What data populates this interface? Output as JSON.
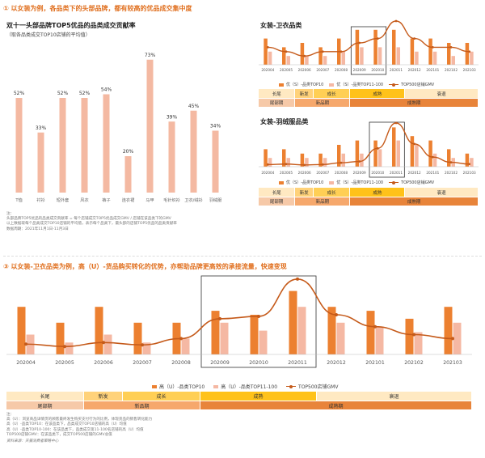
{
  "section1": {
    "title": "① 以女装为例，各品类下的头部品牌，都有较高的优品成交集中度"
  },
  "chart1": {
    "title": "双十一头部品牌TOP5优品的品类成交贡献率",
    "subtitle": "（取各品类成交TOP10店铺的平均值）",
    "notes": [
      "注：",
      "头部品牌TOP5优品的品类成交贡献率 = 每个店铺成交TOP5优品成交GMV / 店铺在该品类下的GMV",
      "以上数据取每个品类成交TOP10店铺的平均值，表示每个品类下，最头部的店铺TOP5优品的品类贡献率",
      "数据周期：2021年11月1日-11月3日"
    ]
  },
  "chart2": {
    "title": "女装-卫衣品类",
    "legend": [
      "优（S）-品类TOP10",
      "优（S）-品类TOP11-100",
      "TOP500店铺GMV"
    ],
    "stage_row1": [
      "长尾",
      "新发",
      "成长",
      "成熟",
      "衰退"
    ],
    "stage_row2": [
      "尾部期",
      "新品期",
      "成熟期"
    ]
  },
  "chart3": {
    "title": "女装-羽绒服品类",
    "legend": [
      "优（S）-品类TOP10",
      "优（S）-品类TOP11-100",
      "TOP500店铺GMV"
    ],
    "stage_row1": [
      "长尾",
      "新发",
      "成长",
      "成熟",
      "衰退"
    ],
    "stage_row2": [
      "尾部期",
      "新品期",
      "成熟期"
    ]
  },
  "section3": {
    "title": "③ 以女装-卫衣品类为例，高（U）-货品购买转化的优势，亦帮助品牌更高效的承接流量，快速变现"
  },
  "chart4": {
    "legend": [
      "高（U）-品类TOP10",
      "高（U）-品类TOP11-100",
      "TOP500店铺GMV"
    ],
    "stage_row1": [
      "长尾",
      "新发",
      "成长",
      "成熟",
      "衰退"
    ],
    "stage_row2": [
      "尾部期",
      "新品期",
      "成熟期"
    ],
    "notes": [
      "注：",
      "高（U）：浏览商品详情页的顾客最终发生购买支付行为的比例，体现货品的销售转化能力",
      "高（U）-品类TOP10：在该品类下，品类成交TOP10店铺的高（U）均值",
      "高（U）-品类TOP10-100：在该品类下，品类成交第11-100名店铺的高（U）均值",
      "TOP500店铺GMV：在该品类下，成交TOP500店铺的GMV总值"
    ],
    "source": "资料来源：天猫消费者策略中心"
  },
  "colors": {
    "accent": "#e07020",
    "bar_dark": "#ec8030",
    "bar_light": "#f5b8a3",
    "line": "#c55a1a",
    "peach_bar": "#f4b9a2"
  },
  "chart_data": [
    {
      "type": "bar",
      "categories": [
        "T恤",
        "衬衫",
        "短外套",
        "风衣",
        "裤子",
        "连衣裙",
        "马甲",
        "毛针织衫",
        "卫衣/绒衫",
        "羽绒服"
      ],
      "values": [
        52,
        33,
        52,
        52,
        54,
        20,
        73,
        39,
        45,
        34
      ],
      "labels": [
        "52%",
        "33%",
        "52%",
        "52%",
        "54%",
        "20%",
        "73%",
        "39%",
        "45%",
        "34%"
      ],
      "ylim": [
        0,
        80
      ]
    },
    {
      "type": "bar",
      "categories": [
        "202004",
        "202005",
        "202006",
        "202007",
        "202008",
        "202009",
        "202010",
        "202011",
        "202012",
        "202101",
        "202102",
        "202103"
      ],
      "series": [
        {
          "name": "优（S）-品类TOP10",
          "values": [
            6,
            4,
            5,
            4,
            6,
            8,
            8,
            8,
            6,
            6,
            5,
            5
          ]
        },
        {
          "name": "优（S）-品类TOP11-100",
          "values": [
            3,
            2,
            2,
            2,
            3,
            4,
            4,
            4,
            3,
            3,
            2,
            3
          ]
        },
        {
          "name": "TOP500店铺GMV",
          "values": [
            4,
            3,
            2,
            3,
            3,
            5,
            6,
            10,
            6,
            4,
            4,
            3
          ]
        }
      ],
      "ylim": [
        0,
        10
      ]
    },
    {
      "type": "bar",
      "categories": [
        "202004",
        "202005",
        "202006",
        "202007",
        "202008",
        "202009",
        "202010",
        "202011",
        "202012",
        "202101",
        "202102",
        "202103"
      ],
      "series": [
        {
          "name": "优（S）-品类TOP10",
          "values": [
            4,
            4,
            3,
            3,
            5,
            6,
            6,
            9,
            7,
            6,
            4,
            3
          ]
        },
        {
          "name": "优（S）-品类TOP11-100",
          "values": [
            2,
            2,
            2,
            2,
            3,
            3,
            4,
            6,
            5,
            3,
            2,
            2
          ]
        },
        {
          "name": "TOP500店铺GMV",
          "values": [
            0.5,
            0.6,
            0.4,
            0.5,
            0.9,
            1.2,
            4.2,
            10,
            5.2,
            2.2,
            1.0,
            0.6
          ]
        }
      ],
      "ylim": [
        0,
        10
      ]
    },
    {
      "type": "bar",
      "categories": [
        "202004",
        "202005",
        "202006",
        "202007",
        "202008",
        "202009",
        "202010",
        "202011",
        "202012",
        "202101",
        "202102",
        "202103"
      ],
      "series": [
        {
          "name": "高（U）-品类TOP10",
          "values": [
            6,
            4,
            6,
            4,
            4,
            5.5,
            5,
            8,
            6,
            5.5,
            4.5,
            6
          ]
        },
        {
          "name": "高（U）-品类TOP11-100",
          "values": [
            2.5,
            1.5,
            2.5,
            1.5,
            2,
            4,
            3,
            6,
            4,
            3.5,
            2.8,
            4
          ]
        },
        {
          "name": "TOP500店铺GMV",
          "values": [
            1.3,
            1.0,
            1.5,
            1.2,
            2.0,
            4.5,
            4.8,
            9.5,
            5.0,
            3.5,
            2.5,
            2.0
          ]
        }
      ],
      "ylim": [
        0,
        10
      ]
    }
  ]
}
